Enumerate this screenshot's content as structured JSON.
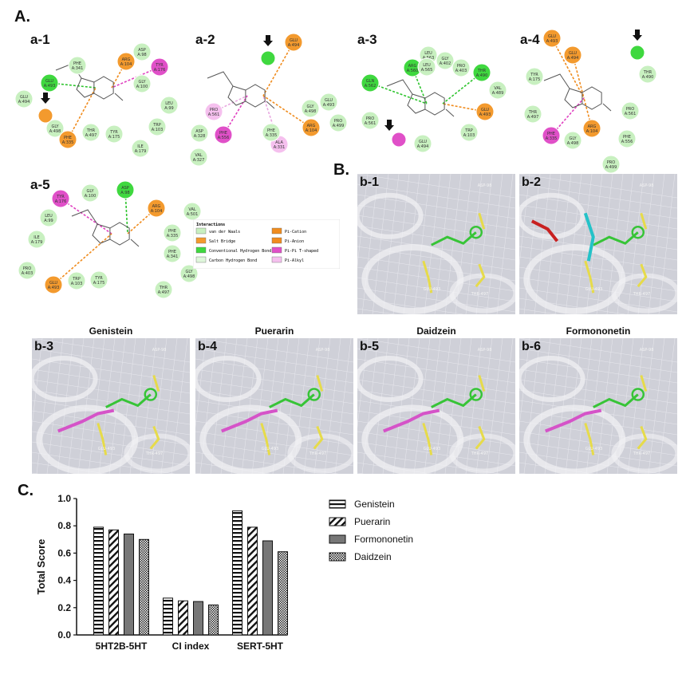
{
  "section_labels": {
    "a": "A.",
    "b": "B.",
    "c": "C."
  },
  "a_panels": [
    {
      "label": "a-1",
      "residues": [
        "PHE A:341",
        "ASP A:98",
        "ARG A:104",
        "TYR A:176",
        "GLU A:493",
        "GLU A:494",
        "LEU A:99",
        "GLY A:498",
        "THR A:497",
        "PHE A:335",
        "TYR A:175",
        "TRP A:103",
        "ILE A:179",
        "GLY A:100"
      ]
    },
    {
      "label": "a-2",
      "residues": [
        "GLU A:494",
        "PRO A:561",
        "ASP A:328",
        "PHE A:556",
        "VAL A:327",
        "ALA A:331",
        "PHE A:335",
        "ARG A:104",
        "GLY A:498",
        "GLU A:493",
        "PRO A:499"
      ]
    },
    {
      "label": "a-3",
      "residues": [
        "LEU A:563",
        "GLY A:402",
        "ARG A:560",
        "LEU A:565",
        "PRO A:403",
        "THR A:490",
        "GLN A:562",
        "VAL A:489",
        "PRO A:561",
        "GLU A:494",
        "TRP A:103",
        "GLU A:493"
      ]
    },
    {
      "label": "a-4",
      "residues": [
        "GLU A:493",
        "GLU A:494",
        "TYR A:175",
        "THR A:490",
        "THR A:497",
        "PRO A:561",
        "ARG A:104",
        "PHE A:335",
        "GLY A:498",
        "PHE A:556",
        "PRO A:499"
      ]
    },
    {
      "label": "a-5",
      "residues": [
        "TYR A:176",
        "GLY A:100",
        "ASP A:98",
        "ARG A:104",
        "VAL A:501",
        "LEU A:99",
        "PHE A:335",
        "ILE A:179",
        "PHE A:341",
        "PRO A:403",
        "GLY A:498",
        "GLU A:493",
        "TRP A:103",
        "TYR A:175",
        "THR A:497"
      ]
    }
  ],
  "interaction_legend": {
    "title": "Interactions",
    "items": [
      {
        "label": "van der Waals",
        "color": "#c8f0c0"
      },
      {
        "label": "Salt Bridge",
        "color": "#f39a2e"
      },
      {
        "label": "Conventional Hydrogen Bond",
        "color": "#3fd83f"
      },
      {
        "label": "Carbon Hydrogen Bond",
        "color": "#dff7db"
      },
      {
        "label": "Pi-Cation",
        "color": "#f08c1e"
      },
      {
        "label": "Pi-Anion",
        "color": "#f08c1e"
      },
      {
        "label": "Pi-Pi T-shaped",
        "color": "#e050c8"
      },
      {
        "label": "Pi-Alkyl",
        "color": "#f5c0ee"
      }
    ]
  },
  "b_panels": [
    {
      "label": "b-1",
      "title": "",
      "res": [
        "ASP-98",
        "GLU-493",
        "THR-497"
      ]
    },
    {
      "label": "b-2",
      "title": "",
      "res": [
        "ASP-98",
        "GLU-493",
        "THR-497"
      ]
    },
    {
      "label": "b-3",
      "title": "Genistein",
      "res": [
        "ASP-98",
        "GLU-493",
        "THR-497"
      ]
    },
    {
      "label": "b-4",
      "title": "Puerarin",
      "res": [
        "ASP-98",
        "GLU-493",
        "THR-497"
      ]
    },
    {
      "label": "b-5",
      "title": "Daidzein",
      "res": [
        "ASP-98",
        "GLU-493",
        "THR-497"
      ]
    },
    {
      "label": "b-6",
      "title": "Formononetin",
      "res": [
        "ASP-98",
        "GLU-493",
        "THR-497"
      ]
    }
  ],
  "chart_data": {
    "type": "bar",
    "title": "",
    "xlabel": "",
    "ylabel": "Total Score",
    "categories": [
      "5HT2B-5HT",
      "CI index",
      "SERT-5HT"
    ],
    "ylim": [
      0,
      1.0
    ],
    "yticks": [
      "0.0",
      "0.2",
      "0.4",
      "0.6",
      "0.8",
      "1.0"
    ],
    "series": [
      {
        "name": "Genistein",
        "values": [
          0.79,
          0.27,
          0.91
        ],
        "pattern": "hstripes"
      },
      {
        "name": "Puerarin",
        "values": [
          0.77,
          0.25,
          0.79
        ],
        "pattern": "diag"
      },
      {
        "name": "Formononetin",
        "values": [
          0.74,
          0.245,
          0.69
        ],
        "pattern": "solid"
      },
      {
        "name": "Daidzein",
        "values": [
          0.7,
          0.22,
          0.61
        ],
        "pattern": "dots"
      }
    ],
    "legend_position": "right"
  }
}
